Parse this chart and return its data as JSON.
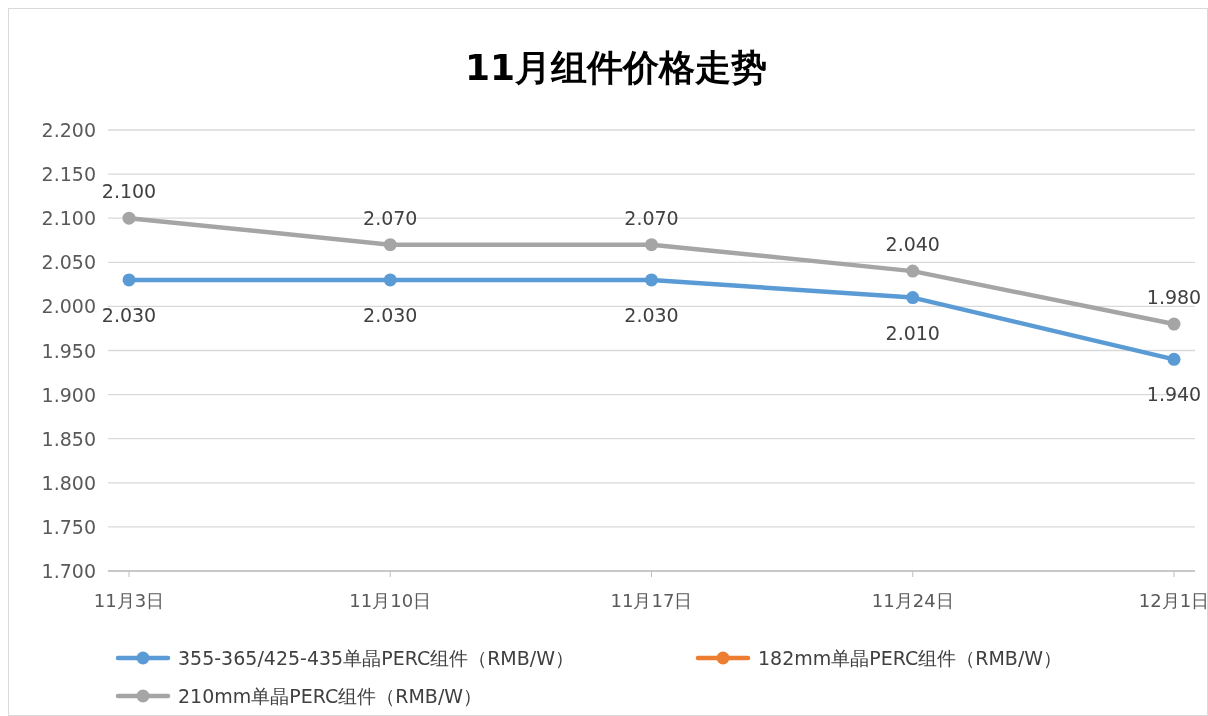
{
  "chart_data": {
    "type": "line",
    "title": "11月组件价格走势",
    "categories": [
      "11月3日",
      "11月10日",
      "11月17日",
      "11月24日",
      "12月1日"
    ],
    "series": [
      {
        "name": "355-365/425-435单晶PERC组件（RMB/W）",
        "color": "#5b9bd5",
        "values": [
          2.03,
          2.03,
          2.03,
          2.01,
          1.94
        ],
        "value_labels": [
          "2.030",
          "2.030",
          "2.030",
          "2.010",
          "1.940"
        ]
      },
      {
        "name": "182mm单晶PERC组件（RMB/W）",
        "color": "#ed7d31",
        "values": [
          null,
          null,
          null,
          null,
          null
        ]
      },
      {
        "name": "210mm单晶PERC组件（RMB/W）",
        "color": "#a5a5a5",
        "values": [
          2.1,
          2.07,
          2.07,
          2.04,
          1.98
        ],
        "value_labels": [
          "2.100",
          "2.070",
          "2.070",
          "2.040",
          "1.980"
        ]
      }
    ],
    "ylim": [
      1.7,
      2.2
    ],
    "yticks": [
      {
        "value": 1.7,
        "label": "1.700"
      },
      {
        "value": 1.75,
        "label": "1.750"
      },
      {
        "value": 1.8,
        "label": "1.800"
      },
      {
        "value": 1.85,
        "label": "1.850"
      },
      {
        "value": 1.9,
        "label": "1.900"
      },
      {
        "value": 1.95,
        "label": "1.950"
      },
      {
        "value": 2.0,
        "label": "2.000"
      },
      {
        "value": 2.05,
        "label": "2.050"
      },
      {
        "value": 2.1,
        "label": "2.100"
      },
      {
        "value": 2.15,
        "label": "2.150"
      },
      {
        "value": 2.2,
        "label": "2.200"
      }
    ],
    "grid": "y",
    "legend": "bottom",
    "marker": "circle",
    "line_style": "solid"
  }
}
